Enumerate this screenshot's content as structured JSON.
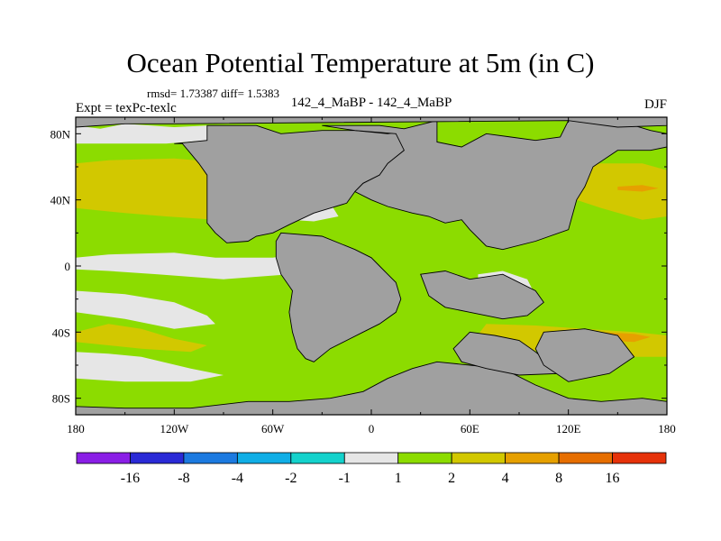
{
  "chart_data": {
    "type": "heatmap",
    "title": "Ocean Potential Temperature at 5m (in C)",
    "stats_text": "rmsd= 1.73387 diff= 1.5383",
    "experiment_label": "Expt = texPc-texlc",
    "case_label": "142_4_MaBP - 142_4_MaBP",
    "season_label": "DJF",
    "x_ticks": [
      {
        "value": -180,
        "label": "180"
      },
      {
        "value": -120,
        "label": "120W"
      },
      {
        "value": -60,
        "label": "60W"
      },
      {
        "value": 0,
        "label": "0"
      },
      {
        "value": 60,
        "label": "60E"
      },
      {
        "value": 120,
        "label": "120E"
      },
      {
        "value": 180,
        "label": "180"
      }
    ],
    "y_ticks": [
      {
        "value": 80,
        "label": "80N"
      },
      {
        "value": 40,
        "label": "40N"
      },
      {
        "value": 0,
        "label": "0"
      },
      {
        "value": -40,
        "label": "40S"
      },
      {
        "value": -80,
        "label": "80S"
      }
    ],
    "xlim": [
      -180,
      180
    ],
    "ylim": [
      -90,
      90
    ],
    "levels": [
      -16,
      -8,
      -4,
      -2,
      -1,
      1,
      2,
      4,
      8,
      16
    ],
    "level_labels": [
      "-16",
      "-8",
      "-4",
      "-2",
      "-1",
      "1",
      "2",
      "4",
      "8",
      "16"
    ],
    "colorbar_colors": [
      "#8a1ee6",
      "#2a2ad6",
      "#1c7ae0",
      "#10aee6",
      "#14d2cc",
      "#e6e6e6",
      "#8cdc00",
      "#d2c800",
      "#e6a000",
      "#e66e00",
      "#e6320a"
    ],
    "land_color": "#a0a0a0",
    "regions": [
      {
        "name": "background",
        "value": 1.5,
        "poly": [
          [
            -180,
            90
          ],
          [
            180,
            90
          ],
          [
            180,
            -90
          ],
          [
            -180,
            -90
          ]
        ]
      },
      {
        "name": "ne-pacific-band",
        "value": 3,
        "poly": [
          [
            -180,
            62
          ],
          [
            -160,
            64
          ],
          [
            -120,
            65
          ],
          [
            -95,
            63
          ],
          [
            -70,
            60
          ],
          [
            -70,
            30
          ],
          [
            -95,
            28
          ],
          [
            -125,
            30
          ],
          [
            -150,
            32
          ],
          [
            -180,
            35
          ]
        ]
      },
      {
        "name": "arctic-gap-pacific",
        "value": 0,
        "poly": [
          [
            -180,
            85
          ],
          [
            -165,
            83
          ],
          [
            -150,
            86
          ],
          [
            -120,
            84
          ],
          [
            -100,
            85
          ],
          [
            -100,
            76
          ],
          [
            -125,
            74
          ],
          [
            -150,
            74
          ],
          [
            -180,
            74
          ]
        ]
      },
      {
        "name": "tropical-pacific-white",
        "value": 0,
        "poly": [
          [
            -180,
            5
          ],
          [
            -160,
            7
          ],
          [
            -120,
            8
          ],
          [
            -95,
            5
          ],
          [
            -60,
            5
          ],
          [
            -40,
            8
          ],
          [
            -35,
            2
          ],
          [
            -50,
            -5
          ],
          [
            -90,
            -8
          ],
          [
            -130,
            -5
          ],
          [
            -160,
            -3
          ],
          [
            -180,
            -2
          ]
        ]
      },
      {
        "name": "south-pacific-white",
        "value": 0,
        "poly": [
          [
            -180,
            -15
          ],
          [
            -150,
            -17
          ],
          [
            -120,
            -22
          ],
          [
            -100,
            -30
          ],
          [
            -95,
            -35
          ],
          [
            -120,
            -38
          ],
          [
            -150,
            -32
          ],
          [
            -180,
            -28
          ]
        ]
      },
      {
        "name": "southern-white",
        "value": 0,
        "poly": [
          [
            -180,
            -52
          ],
          [
            -160,
            -53
          ],
          [
            -140,
            -55
          ],
          [
            -110,
            -62
          ],
          [
            -90,
            -66
          ],
          [
            -110,
            -70
          ],
          [
            -150,
            -70
          ],
          [
            -180,
            -68
          ]
        ]
      },
      {
        "name": "southern-yellow",
        "value": 3,
        "poly": [
          [
            -180,
            -40
          ],
          [
            -160,
            -35
          ],
          [
            -140,
            -38
          ],
          [
            -120,
            -44
          ],
          [
            -100,
            -48
          ],
          [
            -110,
            -52
          ],
          [
            -140,
            -50
          ],
          [
            -180,
            -46
          ]
        ]
      },
      {
        "name": "atlantic-white-north",
        "value": 0,
        "poly": [
          [
            -55,
            35
          ],
          [
            -40,
            40
          ],
          [
            -25,
            38
          ],
          [
            -20,
            30
          ],
          [
            -35,
            27
          ],
          [
            -50,
            28
          ]
        ]
      },
      {
        "name": "atlantic-white-south",
        "value": 0,
        "poly": [
          [
            -20,
            -8
          ],
          [
            -5,
            -12
          ],
          [
            0,
            -20
          ],
          [
            -10,
            -25
          ],
          [
            -25,
            -22
          ],
          [
            -30,
            -12
          ]
        ]
      },
      {
        "name": "indian-white-east",
        "value": 0,
        "poly": [
          [
            65,
            -5
          ],
          [
            80,
            -3
          ],
          [
            95,
            -8
          ],
          [
            100,
            -18
          ],
          [
            90,
            -25
          ],
          [
            75,
            -22
          ],
          [
            65,
            -15
          ]
        ]
      },
      {
        "name": "southern-yellow-band",
        "value": 3,
        "poly": [
          [
            70,
            -35
          ],
          [
            100,
            -36
          ],
          [
            130,
            -38
          ],
          [
            160,
            -40
          ],
          [
            180,
            -42
          ],
          [
            180,
            -55
          ],
          [
            150,
            -55
          ],
          [
            110,
            -52
          ],
          [
            80,
            -50
          ],
          [
            60,
            -48
          ]
        ]
      },
      {
        "name": "south-indian-orange",
        "value": 6,
        "poly": [
          [
            140,
            -40
          ],
          [
            160,
            -41
          ],
          [
            170,
            -43
          ],
          [
            160,
            -46
          ],
          [
            140,
            -45
          ]
        ]
      },
      {
        "name": "east-asia-yellow",
        "value": 3,
        "poly": [
          [
            115,
            60
          ],
          [
            140,
            62
          ],
          [
            165,
            62
          ],
          [
            180,
            58
          ],
          [
            180,
            30
          ],
          [
            165,
            28
          ],
          [
            140,
            35
          ],
          [
            125,
            40
          ]
        ]
      },
      {
        "name": "east-asia-orange",
        "value": 6,
        "poly": [
          [
            150,
            48
          ],
          [
            165,
            49
          ],
          [
            175,
            47
          ],
          [
            165,
            45
          ],
          [
            150,
            46
          ]
        ]
      },
      {
        "name": "mediterranean-yellow",
        "value": 3,
        "poly": [
          [
            35,
            63
          ],
          [
            50,
            70
          ],
          [
            62,
            74
          ],
          [
            75,
            70
          ],
          [
            60,
            62
          ],
          [
            45,
            58
          ]
        ]
      },
      {
        "name": "land-north-america",
        "value": null,
        "poly": [
          [
            -100,
            85
          ],
          [
            -70,
            85
          ],
          [
            -55,
            80
          ],
          [
            -30,
            82
          ],
          [
            -10,
            82
          ],
          [
            10,
            80
          ],
          [
            25,
            82
          ],
          [
            20,
            70
          ],
          [
            10,
            62
          ],
          [
            5,
            55
          ],
          [
            -5,
            50
          ],
          [
            -10,
            45
          ],
          [
            -15,
            38
          ],
          [
            -35,
            32
          ],
          [
            -50,
            25
          ],
          [
            -60,
            20
          ],
          [
            -70,
            18
          ],
          [
            -75,
            15
          ],
          [
            -88,
            14
          ],
          [
            -95,
            20
          ],
          [
            -100,
            26
          ],
          [
            -100,
            55
          ],
          [
            -105,
            62
          ],
          [
            -110,
            68
          ],
          [
            -115,
            74
          ],
          [
            -120,
            74
          ],
          [
            -100,
            76
          ]
        ]
      },
      {
        "name": "land-eurasia",
        "value": null,
        "poly": [
          [
            -30,
            85
          ],
          [
            5,
            85
          ],
          [
            20,
            83
          ],
          [
            40,
            88
          ],
          [
            40,
            75
          ],
          [
            55,
            72
          ],
          [
            70,
            80
          ],
          [
            85,
            78
          ],
          [
            100,
            76
          ],
          [
            115,
            78
          ],
          [
            120,
            88
          ],
          [
            150,
            88
          ],
          [
            170,
            82
          ],
          [
            180,
            80
          ],
          [
            180,
            72
          ],
          [
            170,
            70
          ],
          [
            150,
            70
          ],
          [
            135,
            60
          ],
          [
            130,
            48
          ],
          [
            125,
            40
          ],
          [
            120,
            22
          ],
          [
            100,
            15
          ],
          [
            80,
            10
          ],
          [
            70,
            12
          ],
          [
            60,
            22
          ],
          [
            55,
            28
          ],
          [
            45,
            26
          ],
          [
            35,
            30
          ],
          [
            25,
            32
          ],
          [
            10,
            36
          ],
          [
            0,
            40
          ],
          [
            -10,
            45
          ],
          [
            -5,
            50
          ],
          [
            5,
            55
          ],
          [
            10,
            62
          ],
          [
            20,
            70
          ],
          [
            15,
            80
          ],
          [
            -10,
            82
          ]
        ]
      },
      {
        "name": "land-arctic-pacific",
        "value": null,
        "poly": [
          [
            -180,
            90
          ],
          [
            180,
            90
          ],
          [
            180,
            85
          ],
          [
            150,
            84
          ],
          [
            120,
            88
          ],
          [
            -120,
            86
          ],
          [
            -150,
            86
          ],
          [
            -180,
            84
          ]
        ]
      },
      {
        "name": "land-south-america",
        "value": null,
        "poly": [
          [
            -55,
            20
          ],
          [
            -30,
            18
          ],
          [
            -10,
            10
          ],
          [
            0,
            5
          ],
          [
            5,
            0
          ],
          [
            10,
            -5
          ],
          [
            15,
            -10
          ],
          [
            18,
            -20
          ],
          [
            15,
            -28
          ],
          [
            5,
            -35
          ],
          [
            -5,
            -40
          ],
          [
            -15,
            -45
          ],
          [
            -25,
            -50
          ],
          [
            -35,
            -58
          ],
          [
            -40,
            -56
          ],
          [
            -45,
            -50
          ],
          [
            -48,
            -40
          ],
          [
            -50,
            -28
          ],
          [
            -48,
            -15
          ],
          [
            -55,
            -5
          ],
          [
            -58,
            5
          ],
          [
            -58,
            15
          ]
        ]
      },
      {
        "name": "land-antarctica",
        "value": null,
        "poly": [
          [
            -180,
            -90
          ],
          [
            180,
            -90
          ],
          [
            180,
            -82
          ],
          [
            165,
            -80
          ],
          [
            140,
            -82
          ],
          [
            120,
            -80
          ],
          [
            100,
            -72
          ],
          [
            80,
            -62
          ],
          [
            60,
            -60
          ],
          [
            40,
            -58
          ],
          [
            25,
            -62
          ],
          [
            10,
            -68
          ],
          [
            -5,
            -76
          ],
          [
            -25,
            -80
          ],
          [
            -50,
            -82
          ],
          [
            -75,
            -82
          ],
          [
            -110,
            -86
          ],
          [
            -150,
            -86
          ],
          [
            -180,
            -85
          ]
        ]
      },
      {
        "name": "land-africa",
        "value": null,
        "poly": [
          [
            30,
            -5
          ],
          [
            45,
            -3
          ],
          [
            60,
            -8
          ],
          [
            80,
            -5
          ],
          [
            90,
            -10
          ],
          [
            100,
            -15
          ],
          [
            105,
            -22
          ],
          [
            95,
            -30
          ],
          [
            80,
            -32
          ],
          [
            60,
            -28
          ],
          [
            45,
            -25
          ],
          [
            35,
            -18
          ]
        ]
      },
      {
        "name": "land-india-australia",
        "value": null,
        "poly": [
          [
            60,
            -40
          ],
          [
            75,
            -42
          ],
          [
            90,
            -45
          ],
          [
            100,
            -52
          ],
          [
            110,
            -60
          ],
          [
            115,
            -65
          ],
          [
            90,
            -66
          ],
          [
            70,
            -62
          ],
          [
            55,
            -58
          ],
          [
            50,
            -50
          ]
        ]
      },
      {
        "name": "land-australia",
        "value": null,
        "poly": [
          [
            105,
            -40
          ],
          [
            130,
            -38
          ],
          [
            150,
            -42
          ],
          [
            160,
            -55
          ],
          [
            145,
            -65
          ],
          [
            120,
            -70
          ],
          [
            105,
            -60
          ],
          [
            100,
            -50
          ]
        ]
      }
    ]
  }
}
